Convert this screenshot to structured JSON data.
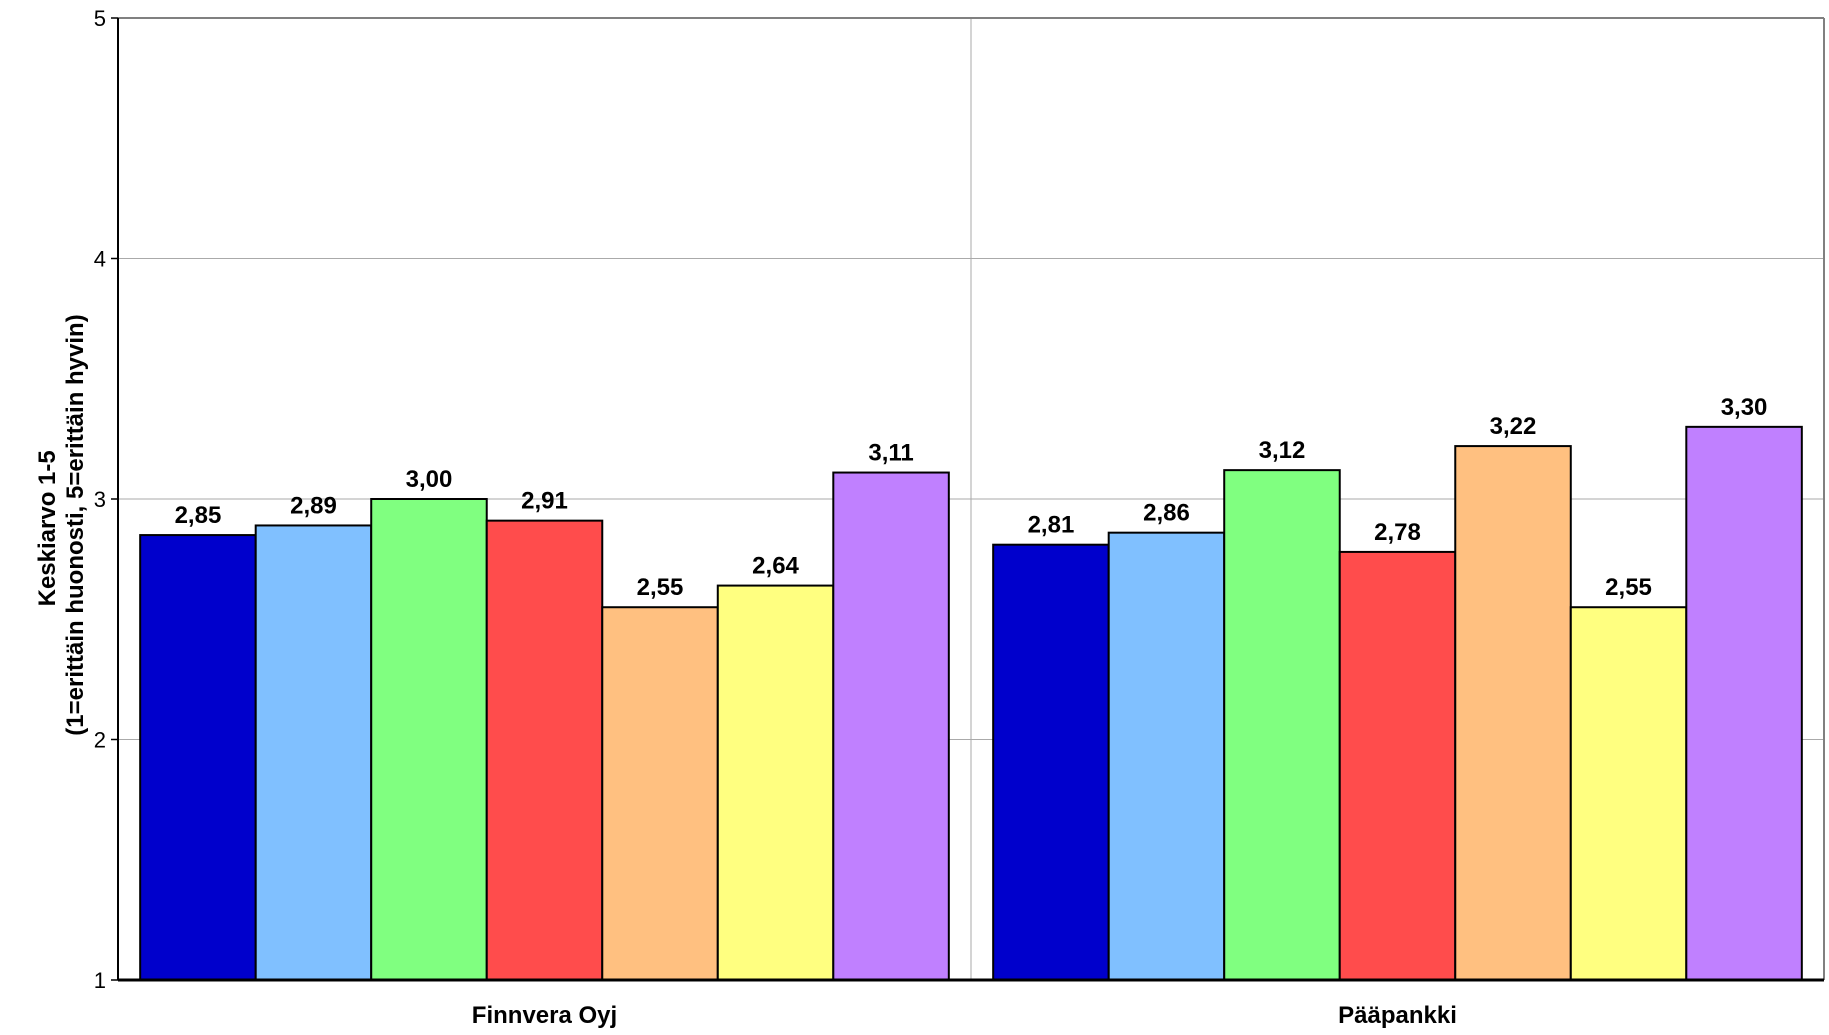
{
  "chart_data": {
    "type": "bar",
    "ylabel": [
      "Keskiarvo 1-5",
      "(1=erittäin huonosti, 5=erittäin hyvin)"
    ],
    "xlabel": "",
    "ylim": [
      1,
      5
    ],
    "yticks": [
      "1",
      "2",
      "3",
      "4",
      "5"
    ],
    "categories": [
      "Finnvera Oyj",
      "Pääpankki"
    ],
    "grid": true,
    "series": [
      {
        "color": "#0000cc",
        "values": [
          2.85,
          2.81
        ],
        "labels": [
          "2,85",
          "2,81"
        ]
      },
      {
        "color": "#80c0ff",
        "values": [
          2.89,
          2.86
        ],
        "labels": [
          "2,89",
          "2,86"
        ]
      },
      {
        "color": "#80ff80",
        "values": [
          3.0,
          3.12
        ],
        "labels": [
          "3,00",
          "3,12"
        ]
      },
      {
        "color": "#ff4c4c",
        "values": [
          2.91,
          2.78
        ],
        "labels": [
          "2,91",
          "2,78"
        ]
      },
      {
        "color": "#ffc080",
        "values": [
          2.55,
          3.22
        ],
        "labels": [
          "2,55",
          "3,22"
        ]
      },
      {
        "color": "#ffff80",
        "values": [
          2.64,
          2.55
        ],
        "labels": [
          "2,64",
          "2,55"
        ]
      },
      {
        "color": "#c080ff",
        "values": [
          3.11,
          3.3
        ],
        "labels": [
          "3,11",
          "3,30"
        ]
      }
    ]
  }
}
